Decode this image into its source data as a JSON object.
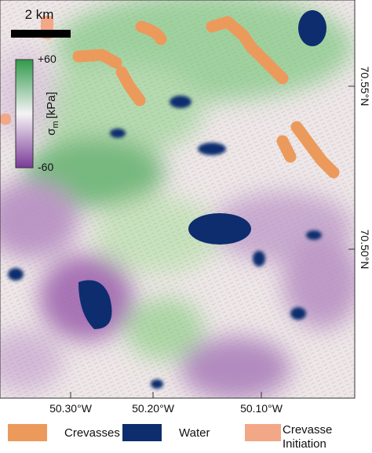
{
  "map": {
    "scale_bar": "2 km",
    "colorbar": {
      "max": "+60",
      "min": "-60",
      "symbol": "σ",
      "subscript": "m",
      "unit": "[kPa]"
    },
    "x_labels": [
      "50.30°W",
      "50.20°W",
      "50.10°W"
    ],
    "y_labels": [
      "70.55°N",
      "70.50°N"
    ]
  },
  "legend": [
    "Crevasses",
    "Water",
    "Crevasse Initiation"
  ]
}
